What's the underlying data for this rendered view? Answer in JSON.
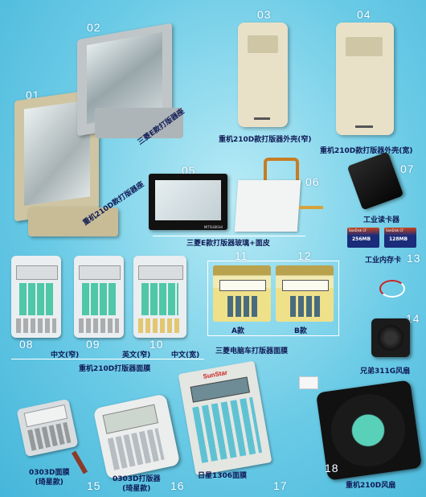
{
  "items": [
    {
      "num": "01",
      "caption": "重机210D款打版器座"
    },
    {
      "num": "02",
      "caption": "三菱E款打版器座"
    },
    {
      "num": "03",
      "caption": "重机210D款打版器外壳(窄)"
    },
    {
      "num": "04",
      "caption": "重机210D款打版器外壳(宽)"
    },
    {
      "num": "05",
      "caption": "三菱E款打版器玻璃+面皮"
    },
    {
      "num": "06",
      "caption": ""
    },
    {
      "num": "07",
      "caption": "工业读卡器"
    },
    {
      "num": "08",
      "caption": "中文(窄)"
    },
    {
      "num": "09",
      "caption": "英文(窄)"
    },
    {
      "num": "10",
      "caption": "中文(宽)"
    },
    {
      "num": "11",
      "caption": "A款"
    },
    {
      "num": "12",
      "caption": "B款"
    },
    {
      "num": "13",
      "caption": "工业内存卡"
    },
    {
      "num": "14",
      "caption": "兄弟311G风扇"
    },
    {
      "num": "15",
      "caption": "0303D面膜\n(琦星款)"
    },
    {
      "num": "16",
      "caption": "0303D打版器\n(琦星款)"
    },
    {
      "num": "17",
      "caption": "日星1306面膜"
    },
    {
      "num": "18",
      "caption": "重机210D风扇"
    }
  ],
  "group_captions": {
    "juki_membranes": "重机210D打版器面膜",
    "mitsubishi_membranes": "三菱电脑车打版器面膜"
  },
  "cards": {
    "card1": "256MB",
    "card2": "128MB",
    "brand": "SanDisk CF"
  },
  "logo_sunstar": "SunStar",
  "logo_mitsubishi": "MITSUBISHI"
}
